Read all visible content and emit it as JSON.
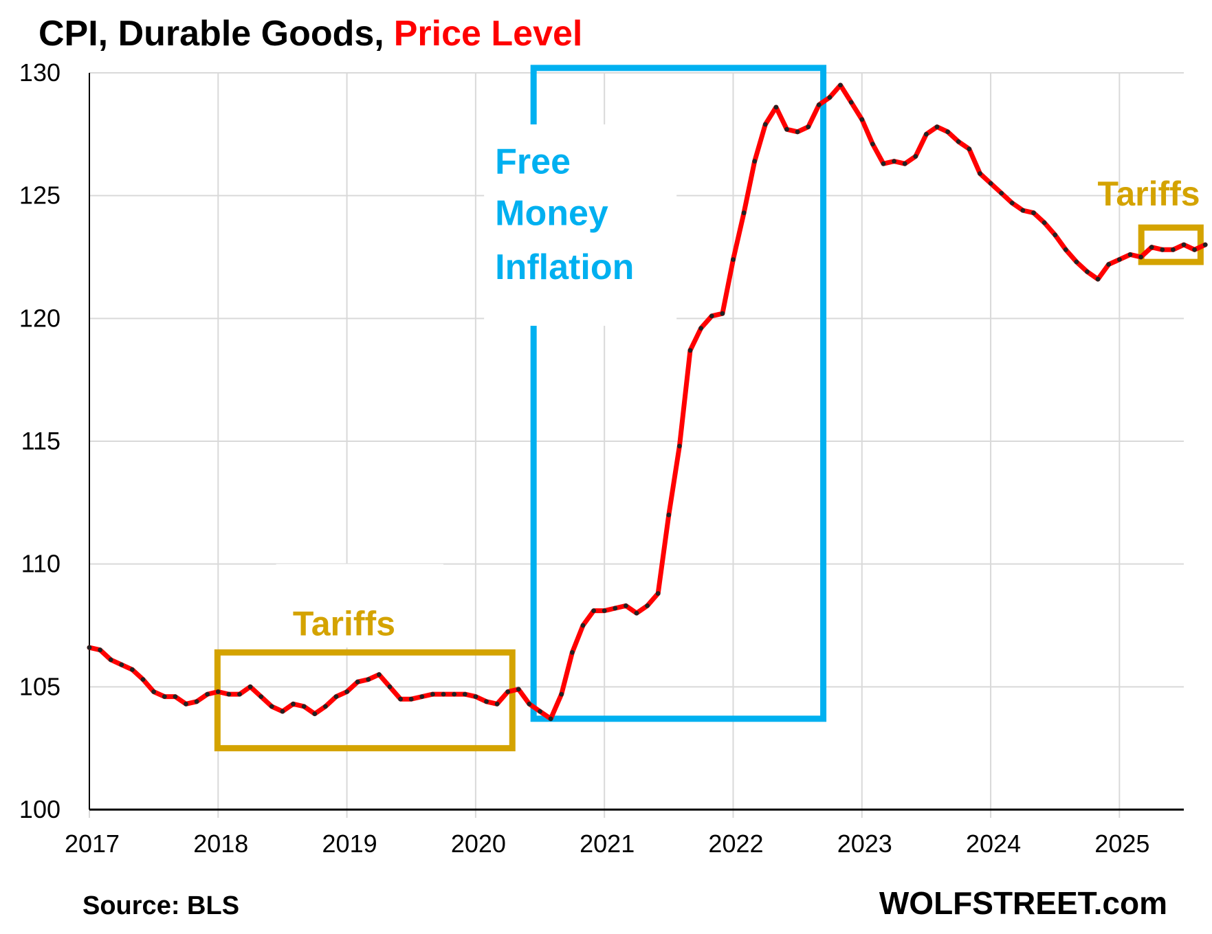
{
  "chart_data": {
    "type": "line",
    "title": "CPI, Durable Goods,",
    "title_highlight": "Price Level",
    "ylim": [
      100,
      130
    ],
    "yticks": [
      100,
      105,
      110,
      115,
      120,
      125,
      130
    ],
    "xlim": [
      2017,
      2025.5
    ],
    "xticks": [
      "2017",
      "2018",
      "2019",
      "2020",
      "2021",
      "2022",
      "2023",
      "2024",
      "2025"
    ],
    "grid": true,
    "series": [
      {
        "start": "2017-01",
        "values": [
          106.6,
          106.5,
          106.1,
          105.9,
          105.7,
          105.3,
          104.8,
          104.6,
          104.6,
          104.3,
          104.4,
          104.7,
          104.8,
          104.7,
          104.7,
          105.0,
          104.6,
          104.2,
          104.0,
          104.3,
          104.2,
          103.9,
          104.2,
          104.6,
          104.8,
          105.2,
          105.3,
          105.5,
          105.0,
          104.5,
          104.5,
          104.6,
          104.7,
          104.7,
          104.7,
          104.7,
          104.6,
          104.4,
          104.3,
          104.8,
          104.9,
          104.3,
          104.0,
          103.7,
          104.7,
          106.4,
          107.5,
          108.1,
          108.1,
          108.2,
          108.3,
          108.0,
          108.3,
          108.8,
          112.0,
          114.8,
          118.7,
          119.6,
          120.1,
          120.2,
          122.4,
          124.3,
          126.4,
          127.9,
          128.6,
          127.7,
          127.6,
          127.8,
          128.7,
          129.0,
          129.5,
          128.8,
          128.1,
          127.1,
          126.3,
          126.4,
          126.3,
          126.6,
          127.5,
          127.8,
          127.6,
          127.2,
          126.9,
          125.9,
          125.5,
          125.1,
          124.7,
          124.4,
          124.3,
          123.9,
          123.4,
          122.8,
          122.3,
          121.9,
          121.6,
          122.2,
          122.4,
          122.6,
          122.5,
          122.9,
          122.8,
          122.8,
          123.0,
          122.8,
          123.0
        ]
      }
    ],
    "annotations": {
      "free_money": [
        "Free",
        "Money",
        "Inflation"
      ],
      "tariffs_1": "Tariffs",
      "tariffs_2": "Tariffs"
    },
    "source": "Source: BLS",
    "brand": "WOLFSTREET.com"
  },
  "colors": {
    "line": "#ff0000",
    "dots": "#222222",
    "grid": "#d9d9d9",
    "tariffs": "#d4a300",
    "free_money": "#00b0f0",
    "title_highlight": "#ff0000"
  }
}
